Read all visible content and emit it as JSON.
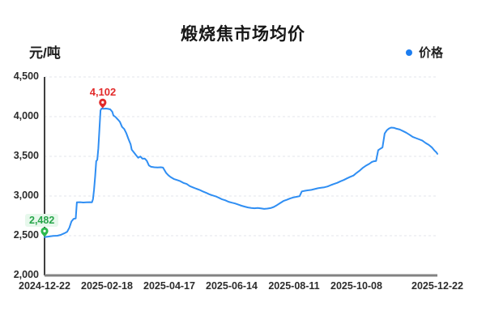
{
  "chart_data": {
    "type": "line",
    "title": "煅烧焦市场均价",
    "unit_label": "元/吨",
    "legend": [
      {
        "label": "价格",
        "color": "#1c7df0"
      }
    ],
    "x_axis": {
      "tick_labels": [
        "2024-12-22",
        "2025-02-18",
        "2025-04-17",
        "2025-06-14",
        "2025-08-11",
        "2025-10-08",
        "2025-12-22"
      ],
      "tick_days": [
        0,
        58,
        116,
        174,
        232,
        290,
        365
      ],
      "range_days": 365
    },
    "y_axis": {
      "min": 2000,
      "max": 4500,
      "tick_labels": [
        "4,500",
        "4,000",
        "3,500",
        "3,000",
        "2,500",
        "2,000"
      ],
      "tick_values": [
        4500,
        4000,
        3500,
        3000,
        2500,
        2000
      ]
    },
    "grid": {
      "horizontal": true,
      "vertical": false,
      "style": "dashed"
    },
    "series": [
      {
        "name": "价格",
        "color": "#2f8ef3",
        "points": [
          [
            0,
            2482
          ],
          [
            4,
            2490
          ],
          [
            8,
            2498
          ],
          [
            12,
            2500
          ],
          [
            15,
            2510
          ],
          [
            17,
            2522
          ],
          [
            19,
            2535
          ],
          [
            21,
            2550
          ],
          [
            23,
            2600
          ],
          [
            25,
            2680
          ],
          [
            27,
            2712
          ],
          [
            29,
            2718
          ],
          [
            30,
            2920
          ],
          [
            33,
            2922
          ],
          [
            36,
            2918
          ],
          [
            39,
            2920
          ],
          [
            42,
            2922
          ],
          [
            44,
            2920
          ],
          [
            45,
            2960
          ],
          [
            46,
            3080
          ],
          [
            47,
            3250
          ],
          [
            48,
            3440
          ],
          [
            49,
            3455
          ],
          [
            50,
            3600
          ],
          [
            51,
            3850
          ],
          [
            52,
            4080
          ],
          [
            53,
            4102
          ],
          [
            55,
            4100
          ],
          [
            57,
            4102
          ],
          [
            59,
            4098
          ],
          [
            61,
            4092
          ],
          [
            63,
            4060
          ],
          [
            64,
            4015
          ],
          [
            66,
            3995
          ],
          [
            68,
            3965
          ],
          [
            70,
            3935
          ],
          [
            72,
            3870
          ],
          [
            74,
            3845
          ],
          [
            76,
            3790
          ],
          [
            78,
            3718
          ],
          [
            80,
            3650
          ],
          [
            81,
            3585
          ],
          [
            83,
            3550
          ],
          [
            85,
            3515
          ],
          [
            87,
            3482
          ],
          [
            89,
            3498
          ],
          [
            91,
            3470
          ],
          [
            93,
            3472
          ],
          [
            95,
            3445
          ],
          [
            97,
            3385
          ],
          [
            99,
            3368
          ],
          [
            102,
            3362
          ],
          [
            105,
            3360
          ],
          [
            108,
            3362
          ],
          [
            110,
            3358
          ],
          [
            113,
            3290
          ],
          [
            115,
            3262
          ],
          [
            117,
            3240
          ],
          [
            120,
            3215
          ],
          [
            123,
            3202
          ],
          [
            126,
            3188
          ],
          [
            129,
            3165
          ],
          [
            132,
            3152
          ],
          [
            135,
            3125
          ],
          [
            138,
            3108
          ],
          [
            141,
            3092
          ],
          [
            144,
            3078
          ],
          [
            147,
            3058
          ],
          [
            150,
            3042
          ],
          [
            153,
            3022
          ],
          [
            156,
            3008
          ],
          [
            159,
            2996
          ],
          [
            162,
            2978
          ],
          [
            165,
            2958
          ],
          [
            168,
            2946
          ],
          [
            171,
            2928
          ],
          [
            174,
            2916
          ],
          [
            177,
            2906
          ],
          [
            180,
            2892
          ],
          [
            183,
            2878
          ],
          [
            186,
            2866
          ],
          [
            189,
            2856
          ],
          [
            192,
            2850
          ],
          [
            195,
            2846
          ],
          [
            198,
            2850
          ],
          [
            201,
            2844
          ],
          [
            204,
            2838
          ],
          [
            207,
            2842
          ],
          [
            210,
            2848
          ],
          [
            213,
            2862
          ],
          [
            216,
            2886
          ],
          [
            219,
            2912
          ],
          [
            222,
            2938
          ],
          [
            225,
            2952
          ],
          [
            228,
            2968
          ],
          [
            231,
            2982
          ],
          [
            234,
            2990
          ],
          [
            237,
            2998
          ],
          [
            239,
            3058
          ],
          [
            242,
            3066
          ],
          [
            245,
            3072
          ],
          [
            248,
            3078
          ],
          [
            251,
            3088
          ],
          [
            254,
            3098
          ],
          [
            257,
            3104
          ],
          [
            260,
            3110
          ],
          [
            263,
            3120
          ],
          [
            266,
            3138
          ],
          [
            269,
            3152
          ],
          [
            272,
            3166
          ],
          [
            275,
            3186
          ],
          [
            278,
            3202
          ],
          [
            281,
            3222
          ],
          [
            284,
            3242
          ],
          [
            287,
            3258
          ],
          [
            290,
            3292
          ],
          [
            293,
            3322
          ],
          [
            296,
            3358
          ],
          [
            299,
            3386
          ],
          [
            302,
            3408
          ],
          [
            304,
            3428
          ],
          [
            306,
            3438
          ],
          [
            308,
            3442
          ],
          [
            310,
            3578
          ],
          [
            312,
            3596
          ],
          [
            314,
            3612
          ],
          [
            316,
            3788
          ],
          [
            318,
            3828
          ],
          [
            320,
            3850
          ],
          [
            322,
            3862
          ],
          [
            325,
            3858
          ],
          [
            327,
            3848
          ],
          [
            330,
            3838
          ],
          [
            333,
            3818
          ],
          [
            336,
            3798
          ],
          [
            339,
            3772
          ],
          [
            342,
            3746
          ],
          [
            345,
            3730
          ],
          [
            348,
            3714
          ],
          [
            351,
            3698
          ],
          [
            354,
            3668
          ],
          [
            357,
            3644
          ],
          [
            360,
            3610
          ],
          [
            362,
            3578
          ],
          [
            364,
            3550
          ],
          [
            365,
            3532
          ]
        ]
      }
    ],
    "annotations": [
      {
        "id": "start",
        "label": "2,482",
        "day": 0,
        "value": 2482,
        "text_color": "#27a54a",
        "pin_color": "#2db84e",
        "bg_color": "#e7f8ec"
      },
      {
        "id": "peak",
        "label": "4,102",
        "day": 54,
        "value": 4102,
        "text_color": "#e22b2b",
        "pin_color": "#e22b2b",
        "bg_color": ""
      }
    ]
  }
}
